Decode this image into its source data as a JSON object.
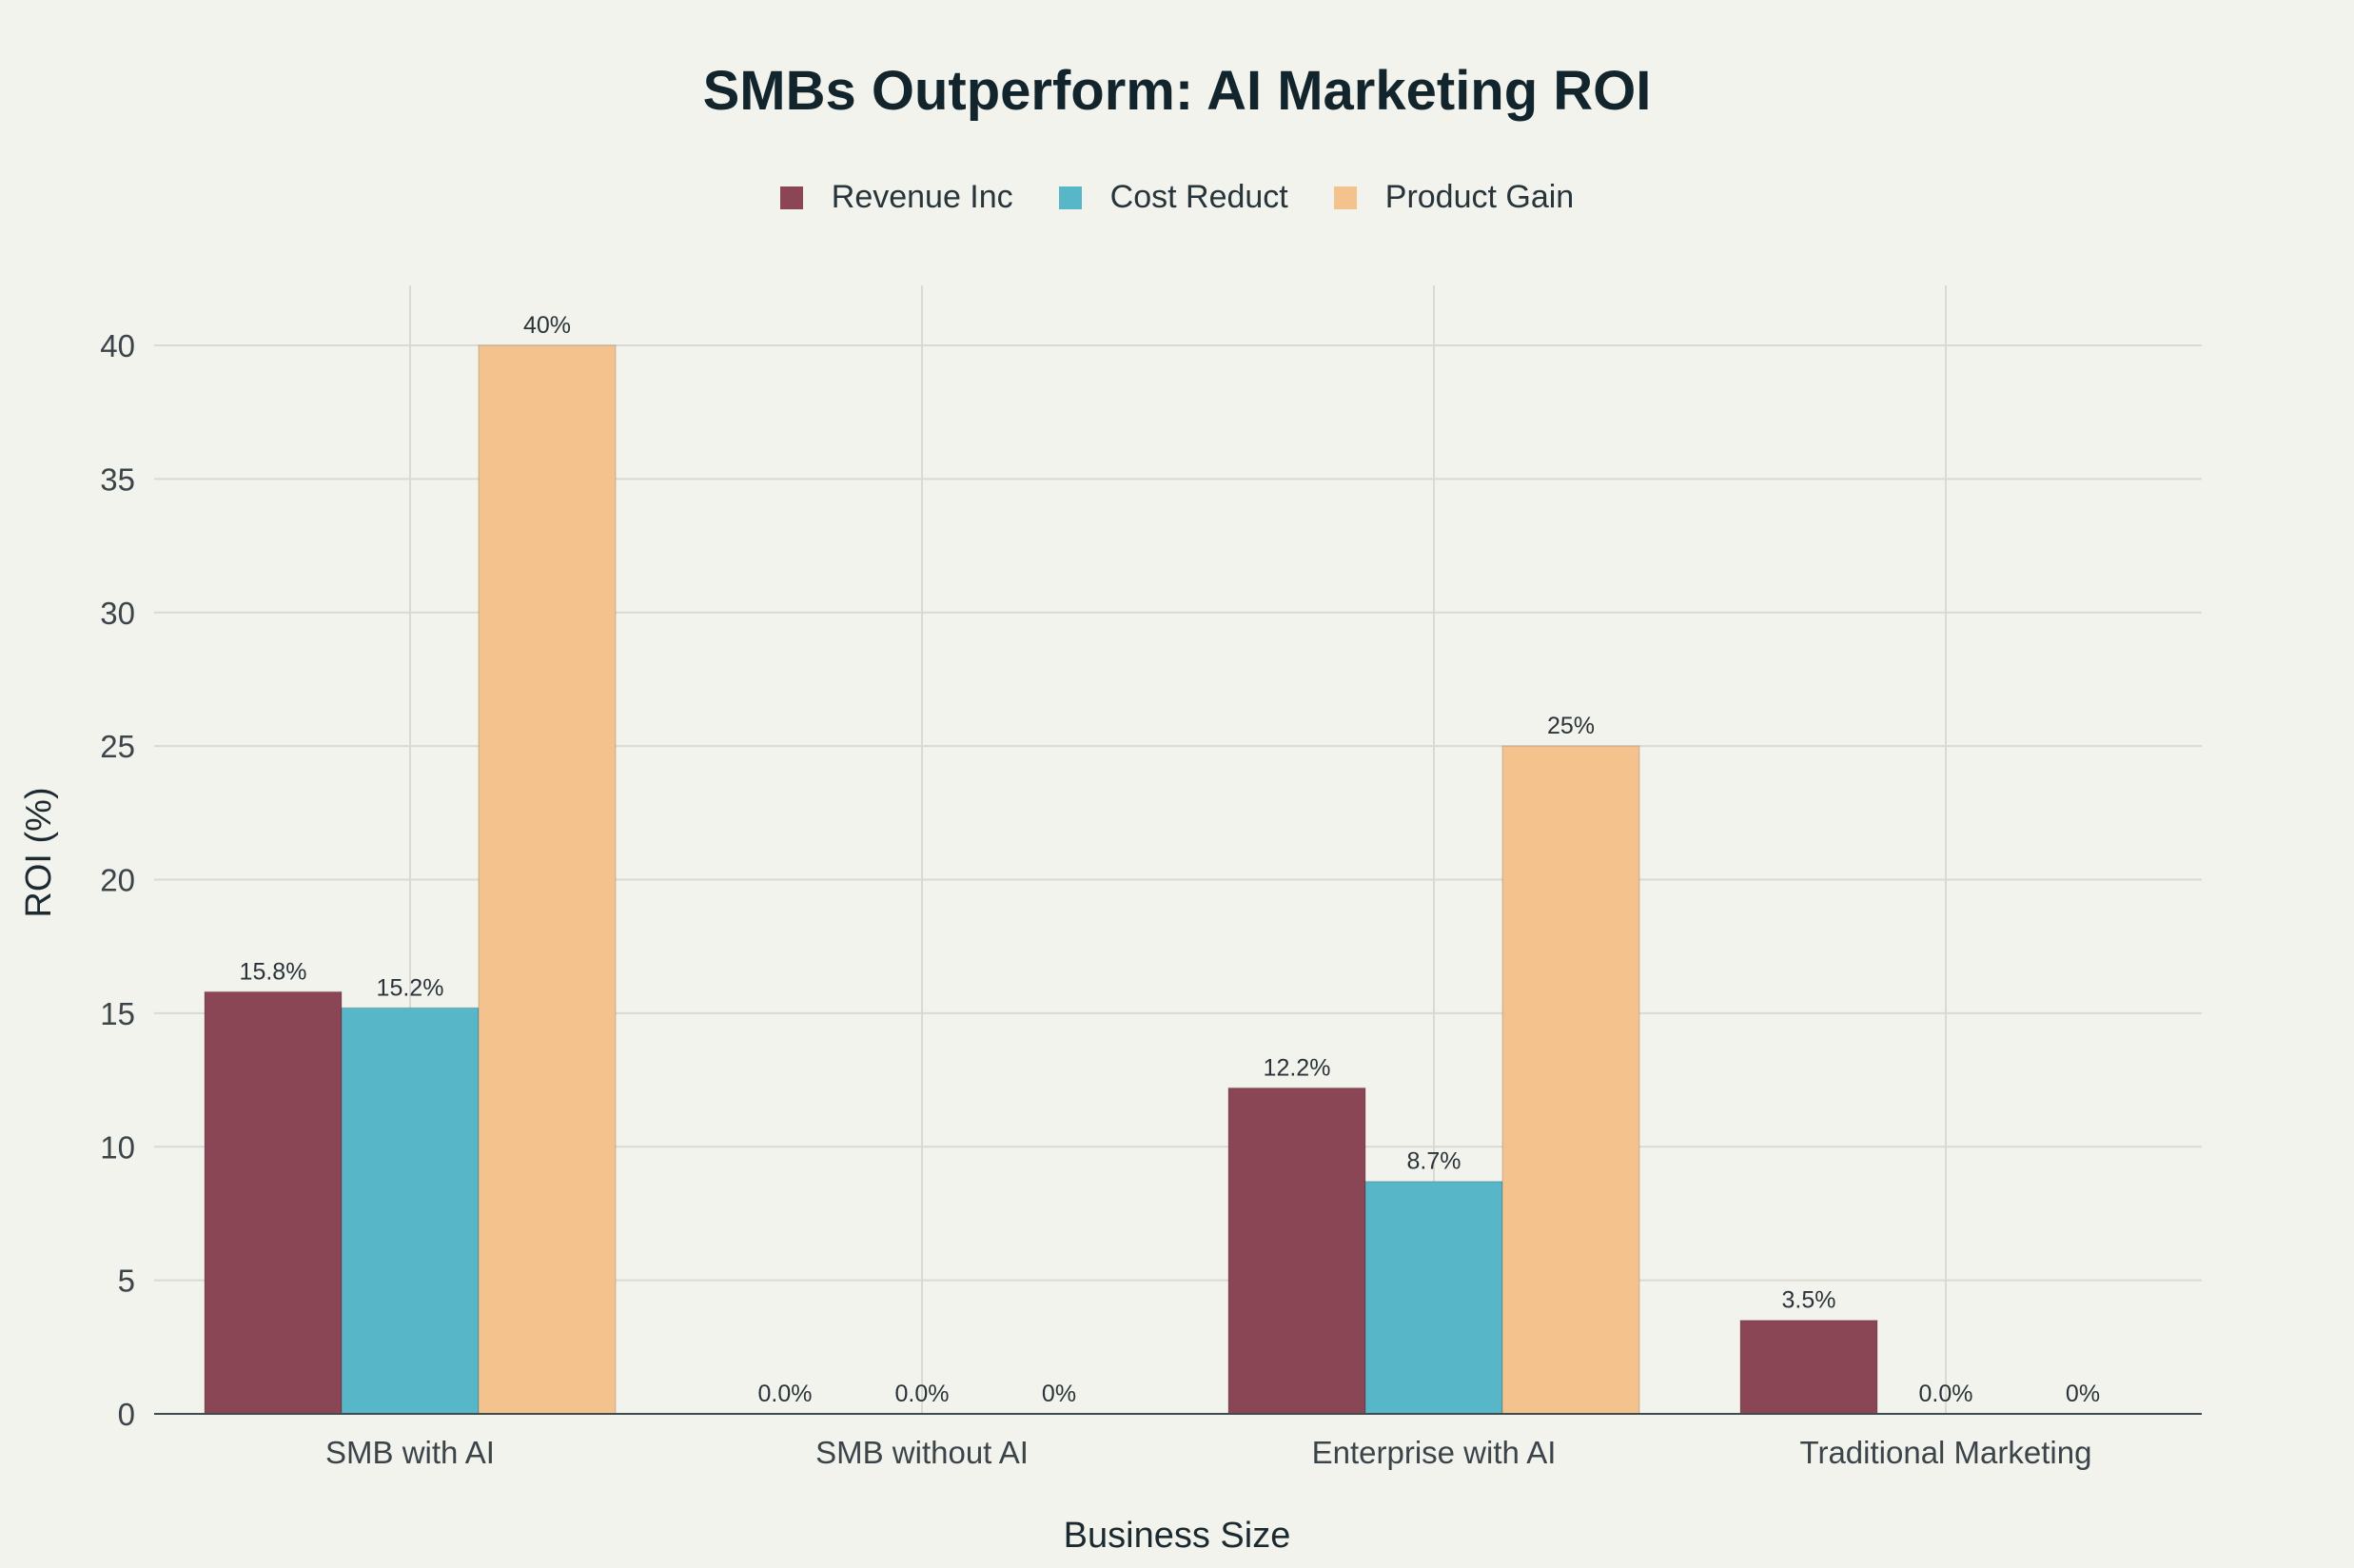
{
  "chart_data": {
    "type": "bar",
    "title": "SMBs Outperform: AI Marketing ROI",
    "xlabel": "Business Size",
    "ylabel": "ROI (%)",
    "ylim": [
      0,
      42
    ],
    "yticks": [
      0,
      5,
      10,
      15,
      20,
      25,
      30,
      35,
      40
    ],
    "grid": true,
    "legend_position": "top-center",
    "categories": [
      "SMB with AI",
      "SMB without AI",
      "Enterprise with AI",
      "Traditional Marketing"
    ],
    "series": [
      {
        "name": "Revenue Inc",
        "color": "#8a4654",
        "values": [
          15.8,
          0.0,
          12.2,
          3.5
        ],
        "labels": [
          "15.8%",
          "0.0%",
          "12.2%",
          "3.5%"
        ]
      },
      {
        "name": "Cost Reduct",
        "color": "#58b6c9",
        "values": [
          15.2,
          0.0,
          8.7,
          0.0
        ],
        "labels": [
          "15.2%",
          "0.0%",
          "8.7%",
          "0.0%"
        ]
      },
      {
        "name": "Product Gain",
        "color": "#f4c38d",
        "values": [
          40,
          0,
          25,
          0
        ],
        "labels": [
          "40%",
          "0%",
          "25%",
          "0%"
        ]
      }
    ]
  }
}
